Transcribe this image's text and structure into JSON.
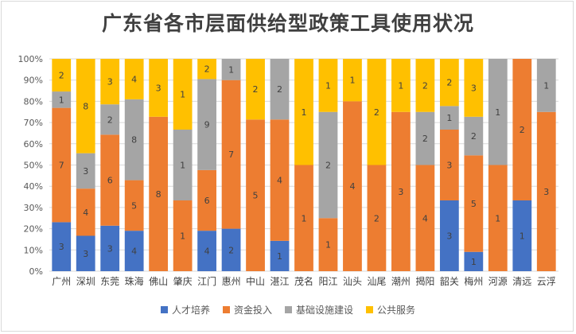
{
  "chart_data": {
    "type": "bar",
    "stacked": "percent",
    "title": "广东省各市层面供给型政策工具使用状况",
    "categories": [
      "广州",
      "深圳",
      "东莞",
      "珠海",
      "佛山",
      "肇庆",
      "江门",
      "惠州",
      "中山",
      "湛江",
      "茂名",
      "阳江",
      "汕头",
      "汕尾",
      "潮州",
      "揭阳",
      "韶关",
      "梅州",
      "河源",
      "清远",
      "云浮"
    ],
    "series": [
      {
        "name": "人才培养",
        "color": "#4472C4",
        "values": [
          3,
          3,
          3,
          4,
          0,
          0,
          4,
          2,
          0,
          1,
          0,
          0,
          0,
          0,
          0,
          0,
          3,
          1,
          0,
          1,
          0
        ]
      },
      {
        "name": "资金投入",
        "color": "#ED7D31",
        "values": [
          7,
          4,
          6,
          5,
          8,
          1,
          6,
          7,
          5,
          4,
          1,
          1,
          4,
          2,
          3,
          4,
          3,
          5,
          1,
          2,
          3
        ]
      },
      {
        "name": "基础设施建设",
        "color": "#A5A5A5",
        "values": [
          1,
          3,
          2,
          8,
          0,
          1,
          9,
          1,
          0,
          2,
          0,
          2,
          0,
          0,
          0,
          2,
          1,
          2,
          1,
          0,
          1
        ]
      },
      {
        "name": "公共服务",
        "color": "#FFC000",
        "values": [
          2,
          8,
          3,
          4,
          3,
          1,
          2,
          0,
          2,
          0,
          1,
          1,
          1,
          2,
          1,
          2,
          2,
          3,
          0,
          0,
          0
        ]
      }
    ],
    "yticks": [
      "0%",
      "10%",
      "20%",
      "30%",
      "40%",
      "50%",
      "60%",
      "70%",
      "80%",
      "90%",
      "100%"
    ],
    "ylim": [
      0,
      100
    ],
    "grid": true,
    "legend_position": "bottom"
  }
}
